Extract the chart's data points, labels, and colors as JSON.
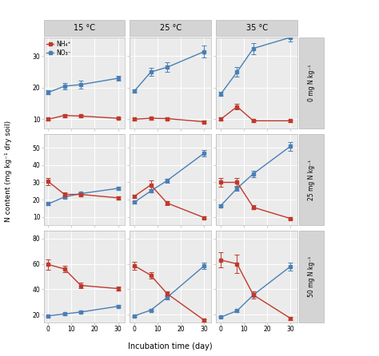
{
  "x": [
    0,
    7,
    14,
    30
  ],
  "col_labels": [
    "15 °C",
    "25 °C",
    "35 °C"
  ],
  "row_labels": [
    "0 mg N kg⁻¹",
    "25 mg N kg⁻¹",
    "50 mg N kg⁻¹"
  ],
  "nh4_color": "#c0392b",
  "no3_color": "#4a7fb5",
  "panel_bg": "#ebebeb",
  "header_bg": "#d4d4d4",
  "ylabel": "N content (mg kg⁻¹ dry soil)",
  "xlabel": "Incubation time (day)",
  "legend_nh4": "NH₄⁺",
  "legend_no3": "NO₃⁻",
  "data": {
    "row0": {
      "col0": {
        "nh4": [
          10.0,
          11.2,
          11.0,
          10.3
        ],
        "nh4_err": [
          0.4,
          0.5,
          0.4,
          0.3
        ],
        "no3": [
          18.5,
          20.5,
          21.0,
          23.0
        ],
        "no3_err": [
          0.6,
          1.0,
          1.2,
          0.7
        ],
        "ylim": [
          7,
          36
        ],
        "yticks": [
          10,
          20,
          30
        ]
      },
      "col1": {
        "nh4": [
          10.0,
          10.3,
          10.2,
          9.2
        ],
        "nh4_err": [
          0.4,
          0.4,
          0.3,
          0.3
        ],
        "no3": [
          19.0,
          25.0,
          26.5,
          31.5
        ],
        "no3_err": [
          0.6,
          1.2,
          1.5,
          1.8
        ],
        "ylim": [
          7,
          36
        ],
        "yticks": [
          10,
          20,
          30
        ]
      },
      "col2": {
        "nh4": [
          10.0,
          14.0,
          9.5,
          9.5
        ],
        "nh4_err": [
          0.5,
          0.9,
          0.4,
          0.4
        ],
        "no3": [
          18.0,
          25.0,
          32.5,
          36.0
        ],
        "no3_err": [
          0.6,
          1.5,
          1.8,
          1.2
        ],
        "ylim": [
          7,
          36
        ],
        "yticks": [
          10,
          20,
          30
        ]
      }
    },
    "row1": {
      "col0": {
        "nh4": [
          30.5,
          23.0,
          23.0,
          21.0
        ],
        "nh4_err": [
          2.0,
          1.0,
          1.0,
          0.8
        ],
        "no3": [
          17.5,
          21.5,
          23.5,
          26.5
        ],
        "no3_err": [
          0.6,
          1.0,
          0.8,
          0.9
        ],
        "ylim": [
          5,
          58
        ],
        "yticks": [
          10,
          20,
          30,
          40,
          50
        ]
      },
      "col1": {
        "nh4": [
          22.0,
          28.5,
          18.0,
          9.5
        ],
        "nh4_err": [
          1.0,
          2.5,
          1.2,
          0.6
        ],
        "no3": [
          18.5,
          25.0,
          31.0,
          47.0
        ],
        "no3_err": [
          0.6,
          1.0,
          1.2,
          1.8
        ],
        "ylim": [
          5,
          58
        ],
        "yticks": [
          10,
          20,
          30,
          40,
          50
        ]
      },
      "col2": {
        "nh4": [
          30.0,
          30.0,
          15.5,
          9.0
        ],
        "nh4_err": [
          2.5,
          2.5,
          1.2,
          0.6
        ],
        "no3": [
          16.5,
          26.5,
          35.0,
          51.0
        ],
        "no3_err": [
          0.6,
          1.2,
          1.8,
          2.5
        ],
        "ylim": [
          5,
          58
        ],
        "yticks": [
          10,
          20,
          30,
          40,
          50
        ]
      }
    },
    "row2": {
      "col0": {
        "nh4": [
          59.5,
          56.0,
          43.0,
          40.5
        ],
        "nh4_err": [
          4.0,
          2.5,
          2.0,
          1.5
        ],
        "no3": [
          19.0,
          20.5,
          22.0,
          26.5
        ],
        "no3_err": [
          0.6,
          0.8,
          0.9,
          1.0
        ],
        "ylim": [
          14,
          86
        ],
        "yticks": [
          20,
          40,
          60,
          80
        ]
      },
      "col1": {
        "nh4": [
          58.5,
          51.0,
          36.5,
          15.5
        ],
        "nh4_err": [
          3.0,
          2.5,
          2.0,
          1.0
        ],
        "no3": [
          19.0,
          23.5,
          33.5,
          58.5
        ],
        "no3_err": [
          0.6,
          1.0,
          1.5,
          2.5
        ],
        "ylim": [
          14,
          86
        ],
        "yticks": [
          20,
          40,
          60,
          80
        ]
      },
      "col2": {
        "nh4": [
          63.0,
          60.0,
          35.5,
          17.0
        ],
        "nh4_err": [
          6.0,
          7.0,
          3.0,
          1.2
        ],
        "no3": [
          18.0,
          23.0,
          35.5,
          58.0
        ],
        "no3_err": [
          0.6,
          1.0,
          1.8,
          3.0
        ],
        "ylim": [
          14,
          86
        ],
        "yticks": [
          20,
          40,
          60,
          80
        ]
      }
    }
  }
}
